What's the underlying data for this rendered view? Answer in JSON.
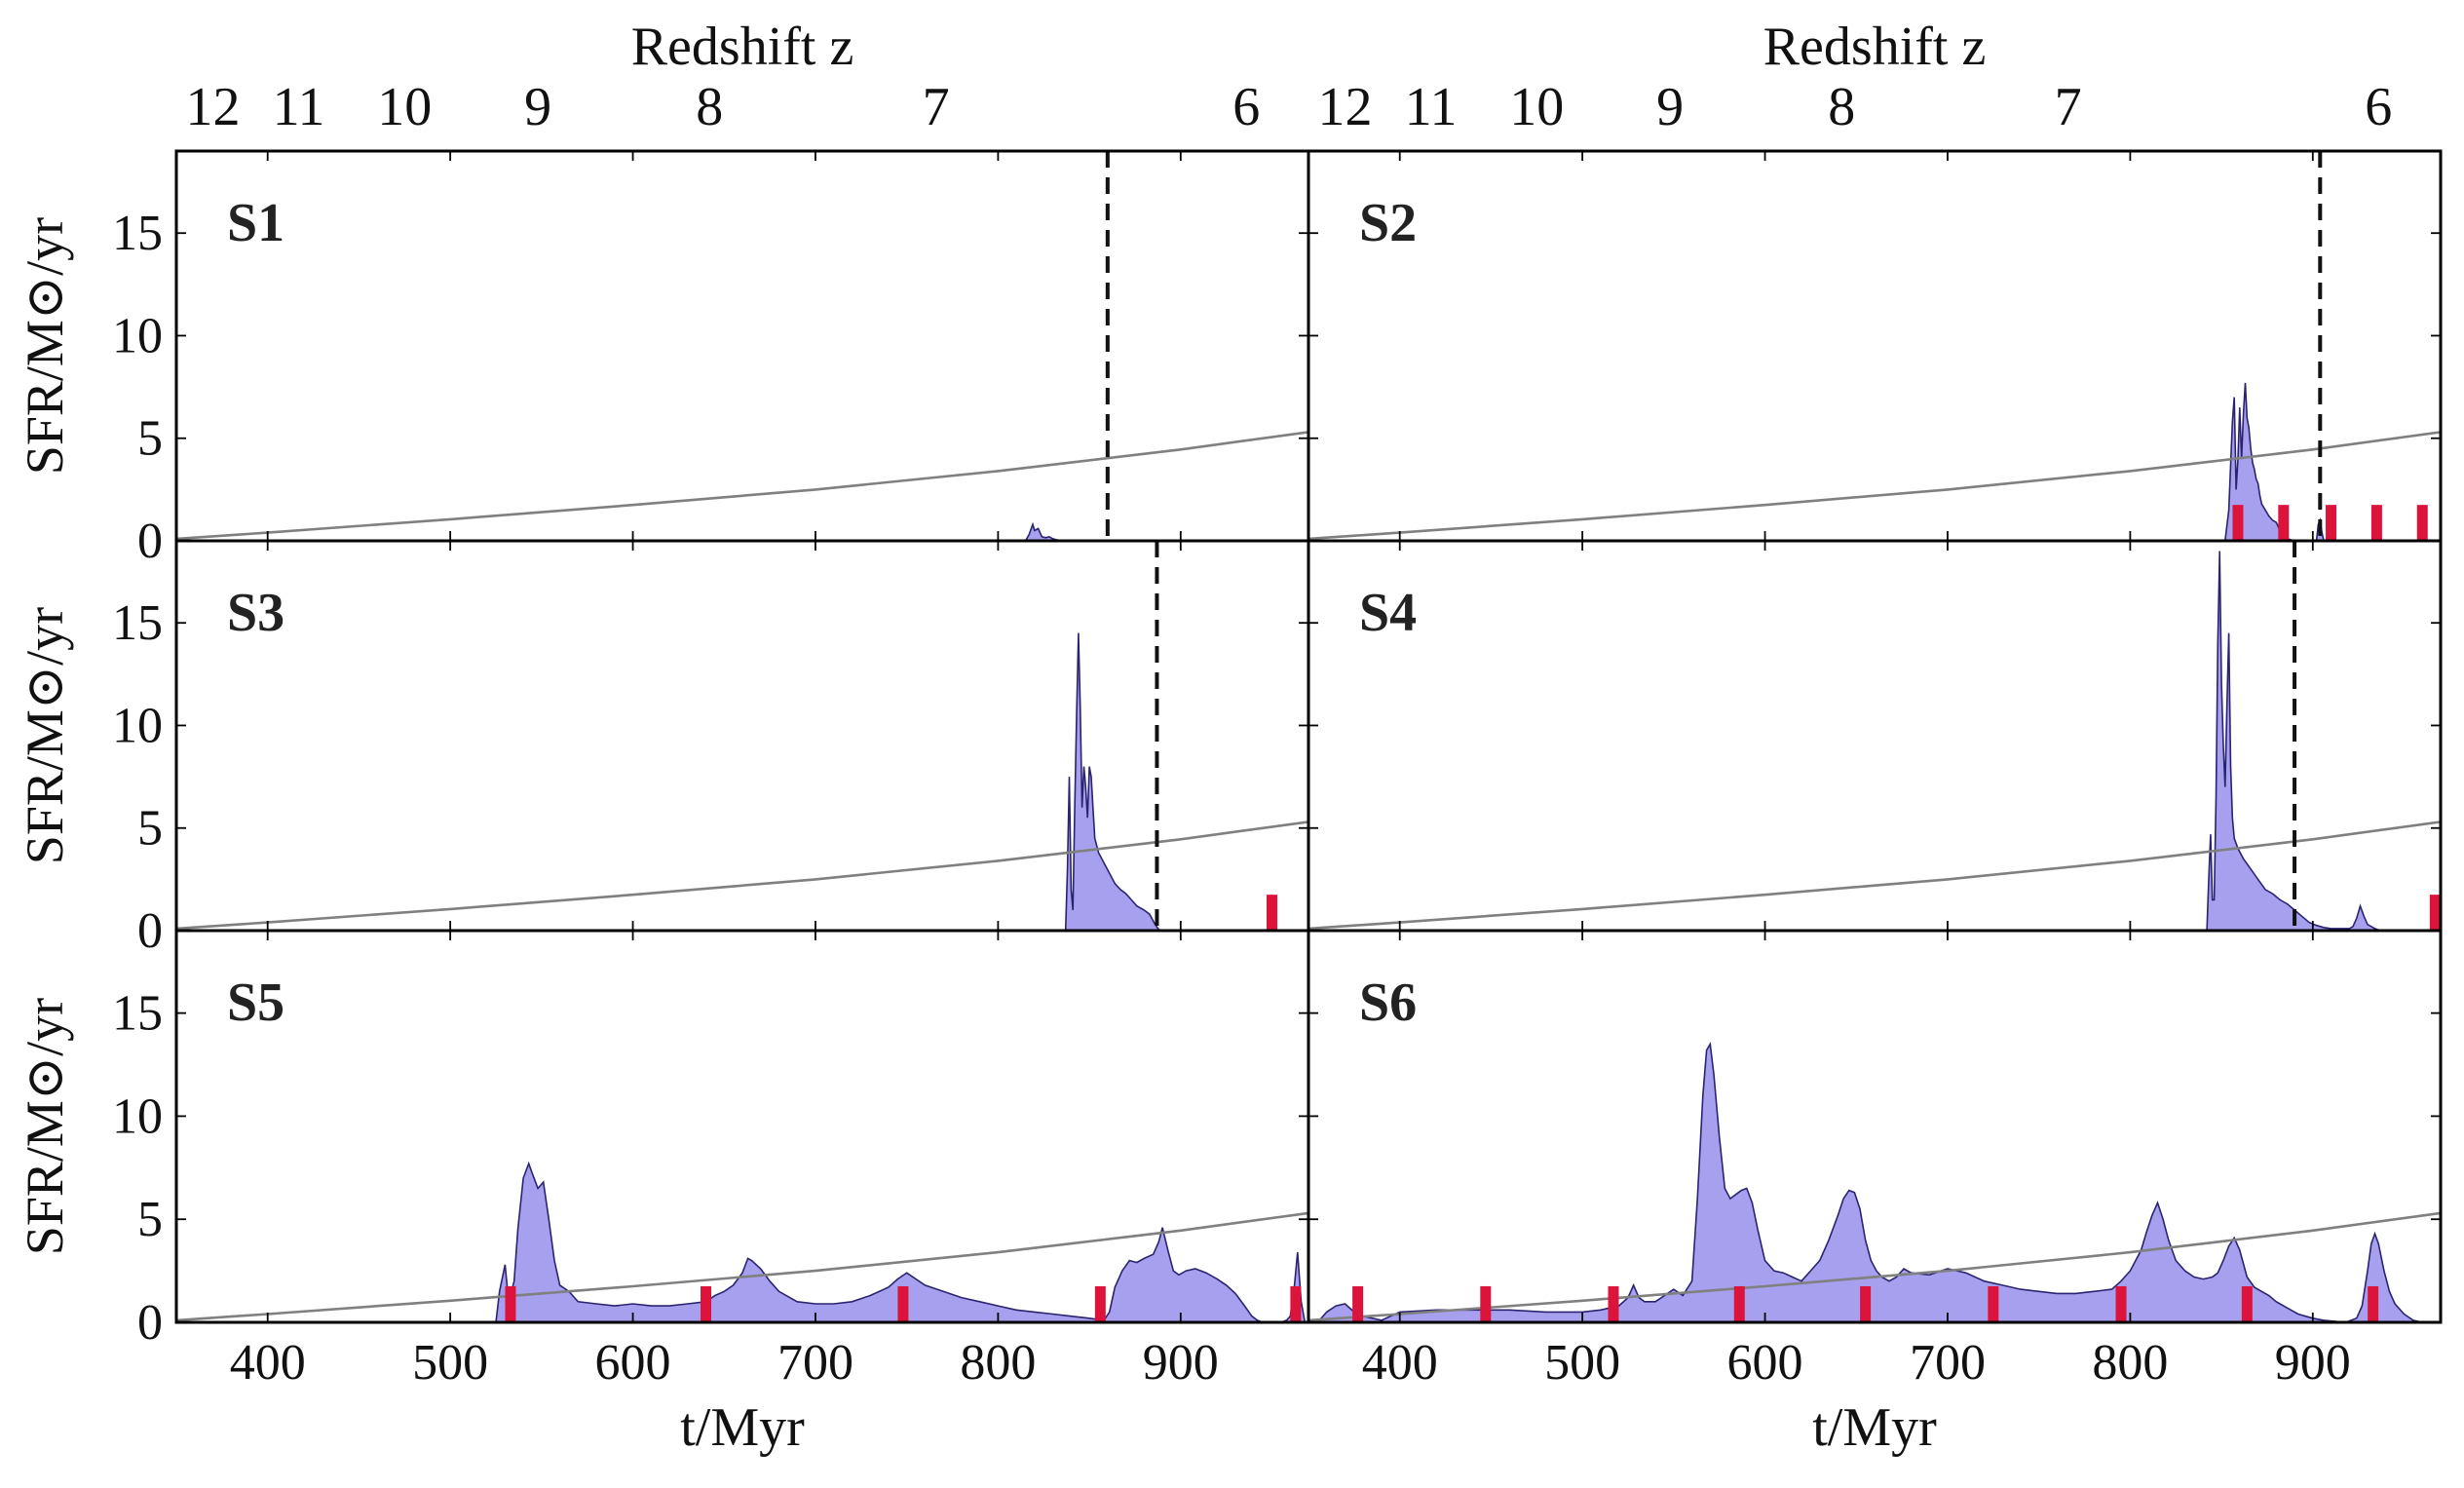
{
  "figure": {
    "top_axis_title": "Redshift z",
    "x_axis_title": "t/Myr",
    "y_axis_title": "SFR/M⊙/yr",
    "colors": {
      "sfr_fill": "#a6a0ee",
      "sfr_line": "#2a2470",
      "reference_curve": "#808080",
      "merger_marker": "#dc143c",
      "dashed_line": "#111111",
      "frame": "#000000"
    }
  },
  "chart_data": {
    "type": "area",
    "layout": "3 rows x 2 columns, shared axes",
    "xlim": [
      350,
      970
    ],
    "ylim": [
      0,
      19
    ],
    "x_ticks": [
      400,
      500,
      600,
      700,
      800,
      900
    ],
    "y_ticks": [
      0,
      5,
      10,
      15
    ],
    "redshift_ticks": [
      {
        "label": "12",
        "t": 370
      },
      {
        "label": "11",
        "t": 417
      },
      {
        "label": "10",
        "t": 475
      },
      {
        "label": "9",
        "t": 548
      },
      {
        "label": "8",
        "t": 642
      },
      {
        "label": "7",
        "t": 766
      },
      {
        "label": "6",
        "t": 936
      }
    ],
    "reference_curve": {
      "description": "grey reference SFR curve",
      "t": [
        350,
        400,
        500,
        600,
        700,
        800,
        900,
        970
      ],
      "sfr": [
        0.1,
        0.4,
        1.05,
        1.75,
        2.5,
        3.4,
        4.45,
        5.3
      ]
    },
    "panels": [
      {
        "name": "S1",
        "dashed_t": 860,
        "markers_t": [],
        "series": {
          "t": [
            815,
            817,
            819,
            820,
            822,
            824,
            826,
            828,
            830,
            832,
            835,
            840
          ],
          "sfr": [
            0,
            0.3,
            0.8,
            0.5,
            0.6,
            0.2,
            0.15,
            0.2,
            0.1,
            0.05,
            0,
            0
          ]
        }
      },
      {
        "name": "S2",
        "dashed_t": 904,
        "markers_t": [
          859,
          884,
          910,
          935,
          960
        ],
        "series": {
          "t": [
            852,
            854,
            856,
            857,
            858,
            859,
            860,
            861,
            862,
            863,
            864,
            865,
            866,
            867,
            868,
            869,
            870,
            871,
            872,
            874,
            876,
            878,
            880,
            882,
            884,
            886,
            888,
            890,
            902,
            903,
            904,
            905,
            906
          ],
          "sfr": [
            0,
            1.5,
            5.8,
            7.0,
            2.5,
            4.0,
            6.5,
            4.0,
            6.2,
            7.7,
            6.0,
            5.5,
            4.5,
            3.8,
            3.5,
            3.0,
            2.8,
            2.2,
            1.8,
            1.5,
            1.2,
            1.0,
            0.9,
            0.5,
            0.3,
            0.1,
            0.05,
            0,
            0,
            0.8,
            1.0,
            0.4,
            0
          ]
        }
      },
      {
        "name": "S3",
        "dashed_t": 887,
        "markers_t": [
          950
        ],
        "series": {
          "t": [
            837,
            838,
            839,
            840,
            841,
            842,
            843,
            844,
            845,
            846,
            847,
            848,
            849,
            850,
            851,
            852,
            853,
            855,
            858,
            861,
            864,
            867,
            870,
            873,
            876,
            880,
            883,
            886,
            888,
            890
          ],
          "sfr": [
            0,
            3.0,
            7.5,
            2.0,
            1.0,
            6.0,
            10.5,
            14.5,
            11.0,
            6.0,
            8.0,
            7.0,
            5.5,
            8.0,
            7.5,
            6.0,
            4.5,
            3.8,
            3.3,
            2.8,
            2.3,
            2.0,
            1.8,
            1.5,
            1.2,
            1.0,
            0.8,
            0.3,
            0.05,
            0
          ]
        }
      },
      {
        "name": "S4",
        "dashed_t": 890,
        "markers_t": [
          967
        ],
        "series": {
          "t": [
            842,
            843,
            844,
            845,
            846,
            847,
            848,
            849,
            850,
            851,
            852,
            853,
            854,
            855,
            856,
            857,
            859,
            862,
            866,
            870,
            874,
            878,
            882,
            886,
            890,
            894,
            898,
            902,
            906,
            910,
            915,
            920,
            922,
            924,
            926,
            928,
            930,
            932,
            934,
            937
          ],
          "sfr": [
            0,
            2.5,
            4.7,
            1.5,
            1.5,
            6.5,
            14.0,
            18.5,
            12.0,
            9.0,
            7.0,
            11.0,
            14.5,
            8.0,
            5.5,
            4.5,
            4.0,
            3.5,
            3.0,
            2.5,
            2.0,
            1.8,
            1.5,
            1.3,
            1.0,
            0.7,
            0.4,
            0.25,
            0.15,
            0.1,
            0.1,
            0.1,
            0.2,
            0.6,
            1.2,
            0.7,
            0.3,
            0.2,
            0.1,
            0
          ]
        }
      },
      {
        "name": "S5",
        "dashed_t": null,
        "markers_t": [
          533,
          640,
          748,
          856,
          963
        ],
        "series": {
          "t": [
            525,
            527,
            530,
            532,
            535,
            537,
            540,
            543,
            545,
            548,
            551,
            554,
            557,
            560,
            565,
            570,
            580,
            590,
            600,
            610,
            620,
            630,
            640,
            645,
            650,
            655,
            660,
            663,
            665,
            670,
            675,
            680,
            690,
            700,
            710,
            720,
            730,
            740,
            745,
            750,
            760,
            770,
            780,
            790,
            800,
            810,
            820,
            830,
            840,
            850,
            858,
            861,
            864,
            868,
            872,
            876,
            880,
            885,
            888,
            890,
            893,
            896,
            899,
            903,
            908,
            914,
            920,
            925,
            930,
            935,
            939,
            942,
            945,
            950,
            955,
            958,
            960,
            962,
            964,
            966,
            968
          ],
          "sfr": [
            0,
            1.5,
            2.8,
            1.0,
            2.0,
            4.5,
            7.0,
            7.7,
            7.2,
            6.5,
            6.8,
            5.0,
            3.0,
            1.8,
            1.5,
            1.0,
            0.9,
            0.8,
            0.9,
            0.8,
            0.8,
            0.9,
            1.0,
            1.3,
            1.5,
            1.8,
            2.4,
            3.1,
            3.0,
            2.6,
            2.0,
            1.5,
            1.0,
            0.9,
            0.9,
            1.0,
            1.3,
            1.7,
            2.1,
            2.4,
            1.8,
            1.5,
            1.2,
            1.0,
            0.8,
            0.6,
            0.5,
            0.4,
            0.3,
            0.2,
            0.1,
            0.5,
            1.7,
            2.5,
            3.0,
            2.9,
            3.1,
            3.3,
            3.9,
            4.6,
            3.5,
            2.5,
            2.3,
            2.5,
            2.6,
            2.4,
            2.1,
            1.8,
            1.4,
            0.8,
            0.3,
            0.1,
            0,
            0,
            0,
            0.1,
            0.3,
            1.5,
            3.4,
            1.0,
            0
          ]
        }
      },
      {
        "name": "S6",
        "dashed_t": null,
        "markers_t": [
          377,
          447,
          517,
          586,
          655,
          725,
          795,
          864,
          933
        ],
        "series": {
          "t": [
            355,
            360,
            365,
            370,
            375,
            380,
            385,
            390,
            395,
            400,
            420,
            440,
            460,
            480,
            500,
            510,
            520,
            525,
            528,
            531,
            534,
            540,
            550,
            555,
            560,
            563,
            566,
            568,
            570,
            572,
            575,
            578,
            581,
            584,
            587,
            590,
            593,
            596,
            600,
            605,
            610,
            615,
            620,
            625,
            630,
            635,
            640,
            643,
            646,
            649,
            652,
            655,
            658,
            661,
            664,
            668,
            672,
            676,
            680,
            690,
            700,
            710,
            720,
            730,
            740,
            750,
            760,
            770,
            780,
            790,
            795,
            800,
            803,
            806,
            809,
            812,
            815,
            818,
            821,
            825,
            830,
            835,
            840,
            845,
            848,
            851,
            854,
            857,
            860,
            864,
            868,
            872,
            876,
            880,
            884,
            888,
            892,
            896,
            900,
            906,
            912,
            918,
            924,
            927,
            930,
            932,
            934,
            936,
            939,
            942,
            945,
            950,
            955,
            960
          ],
          "sfr": [
            0,
            0.5,
            0.8,
            0.9,
            0.5,
            0.3,
            0.2,
            0.1,
            0.3,
            0.5,
            0.6,
            0.6,
            0.6,
            0.5,
            0.5,
            0.6,
            0.8,
            1.2,
            1.8,
            1.2,
            1.0,
            1.0,
            1.6,
            1.3,
            2.0,
            6.0,
            11.0,
            13.2,
            13.5,
            12.0,
            9.0,
            6.5,
            6.0,
            6.2,
            6.4,
            6.5,
            5.8,
            4.5,
            3.0,
            2.5,
            2.4,
            2.2,
            2.0,
            2.5,
            3.0,
            4.0,
            5.2,
            6.0,
            6.4,
            6.3,
            5.5,
            4.0,
            3.0,
            2.5,
            2.2,
            2.0,
            2.2,
            2.6,
            2.4,
            2.3,
            2.6,
            2.4,
            2.0,
            1.8,
            1.6,
            1.5,
            1.4,
            1.4,
            1.5,
            1.6,
            2.0,
            2.5,
            3.0,
            3.5,
            4.4,
            5.2,
            5.8,
            5.0,
            4.0,
            3.0,
            2.5,
            2.2,
            2.1,
            2.2,
            2.4,
            3.0,
            3.7,
            4.1,
            3.5,
            2.2,
            1.7,
            1.5,
            1.3,
            1.0,
            0.8,
            0.6,
            0.4,
            0.3,
            0.2,
            0.1,
            0.05,
            0,
            0.2,
            0.8,
            2.5,
            3.8,
            4.3,
            3.8,
            2.5,
            1.5,
            0.9,
            0.4,
            0.1,
            0
          ]
        }
      }
    ]
  }
}
